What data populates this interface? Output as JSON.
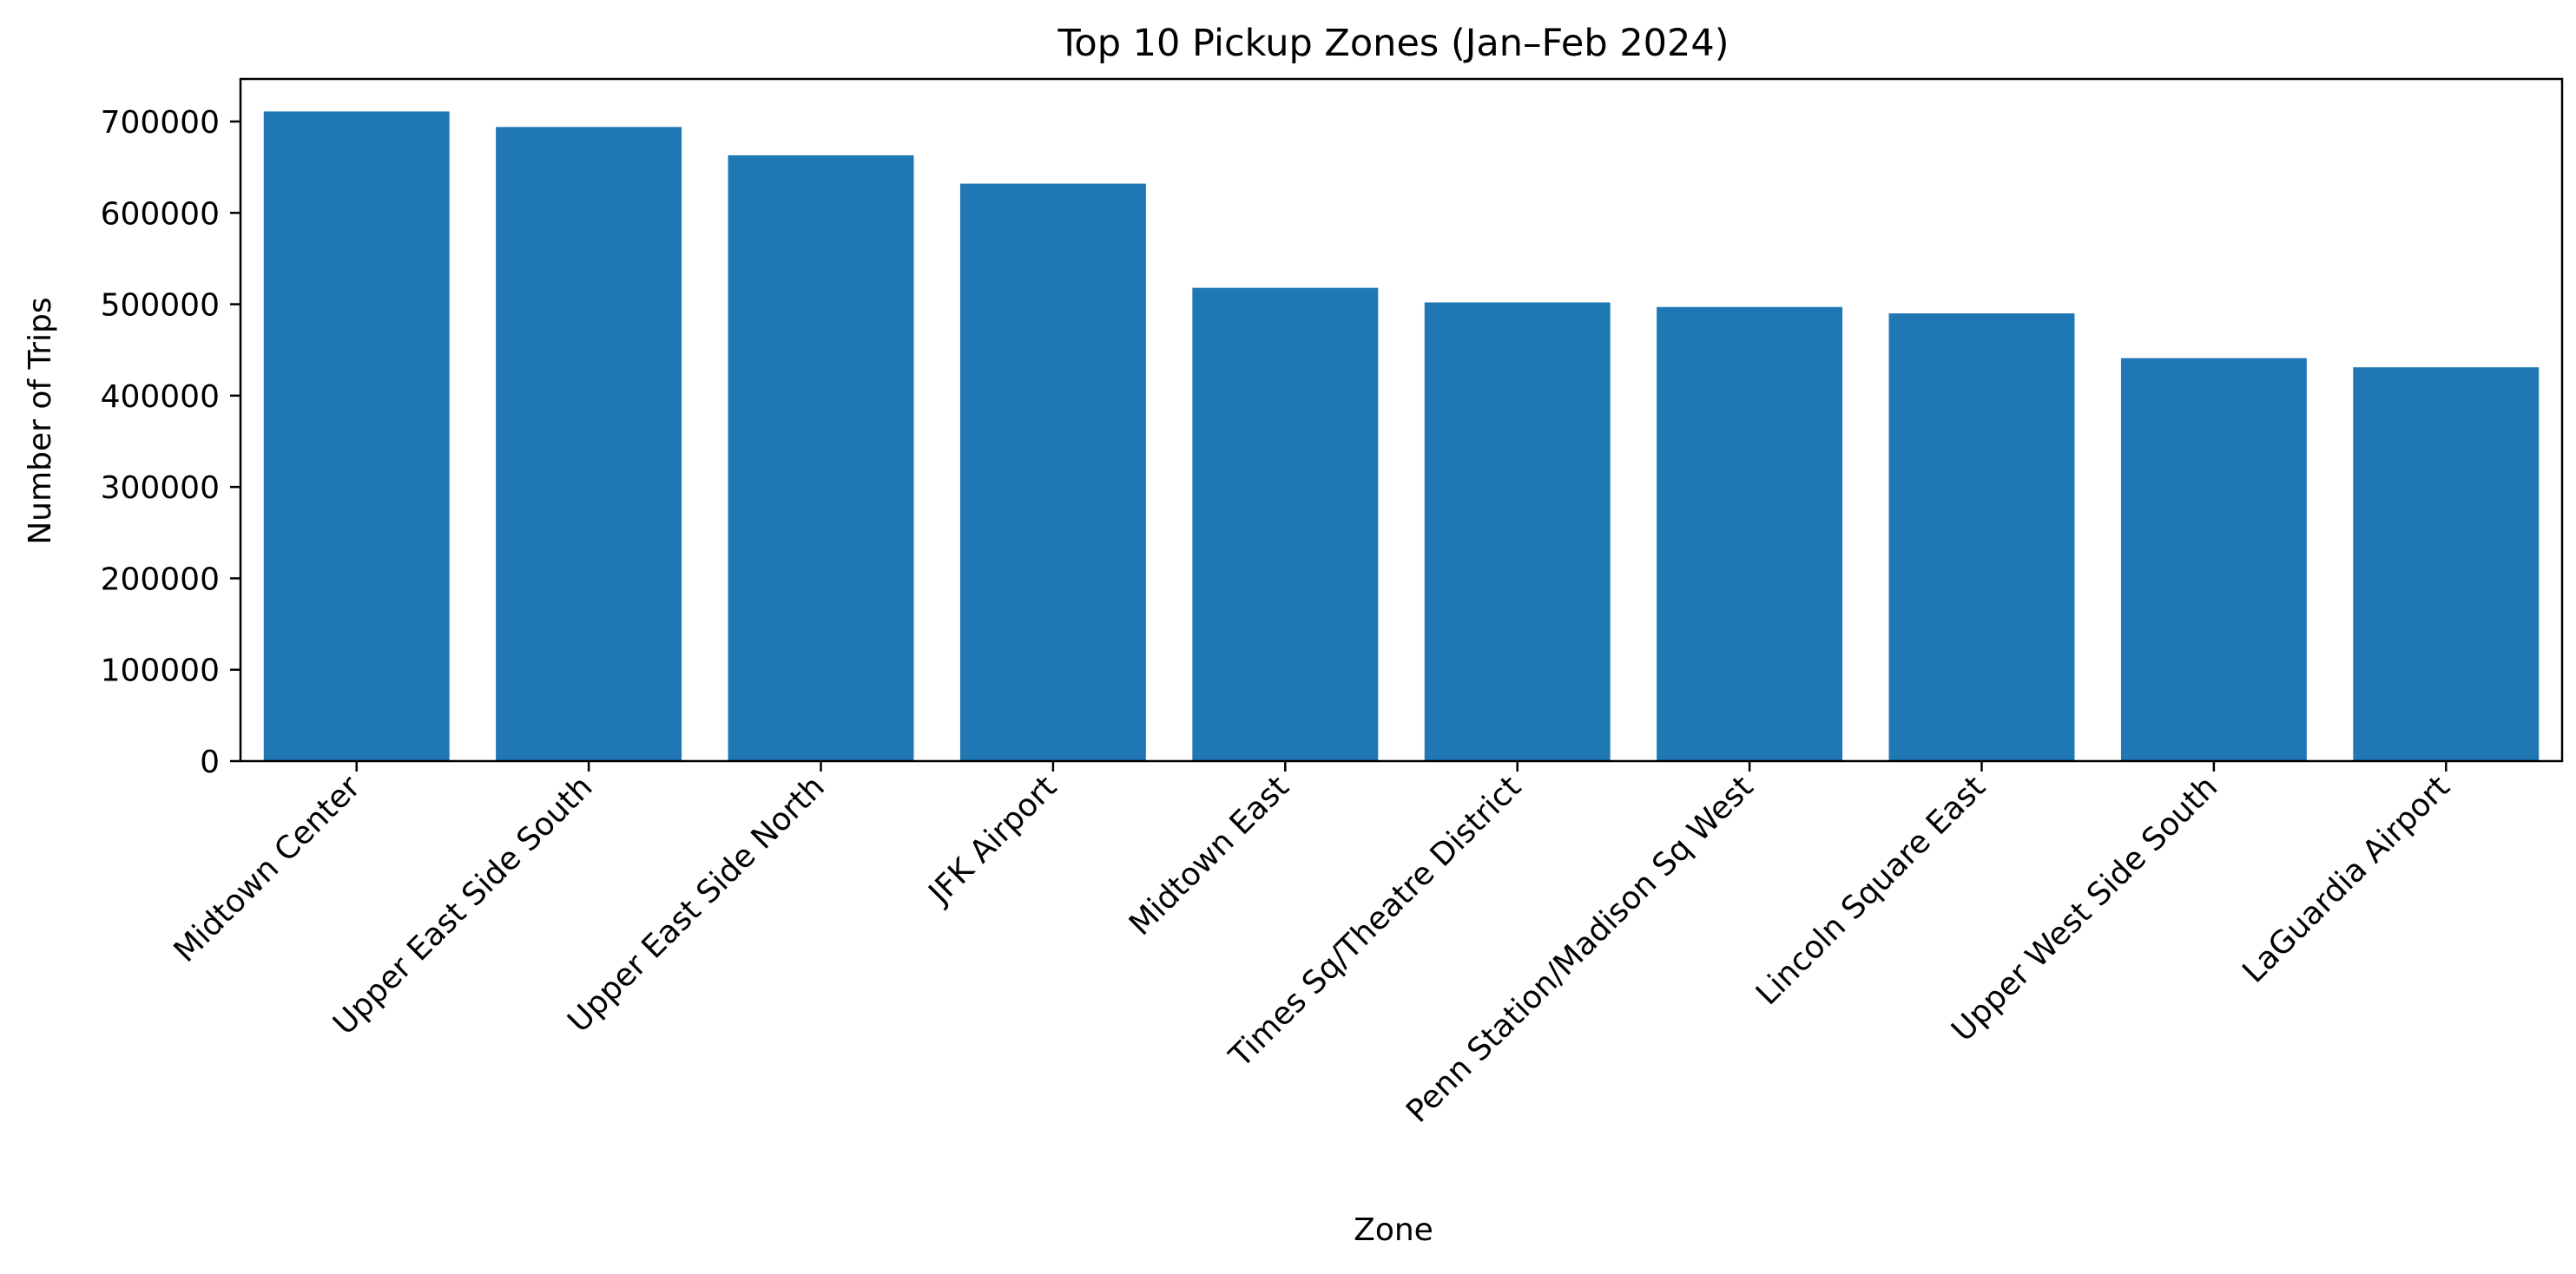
{
  "chart_data": {
    "type": "bar",
    "title": "Top 10 Pickup Zones (Jan–Feb 2024)",
    "xlabel": "Zone",
    "ylabel": "Number of Trips",
    "categories": [
      "Midtown Center",
      "Upper East Side South",
      "Upper East Side North",
      "JFK Airport",
      "Midtown East",
      "Times Sq/Theatre District",
      "Penn Station/Madison Sq West",
      "Lincoln Square East",
      "Upper West Side South",
      "LaGuardia Airport"
    ],
    "values": [
      711000,
      694000,
      663000,
      632000,
      518000,
      502000,
      497000,
      490000,
      441000,
      431000
    ],
    "ylim": [
      0,
      746550
    ],
    "yticks": [
      0,
      100000,
      200000,
      300000,
      400000,
      500000,
      600000,
      700000
    ],
    "ytick_labels": [
      "0",
      "100000",
      "200000",
      "300000",
      "400000",
      "500000",
      "600000",
      "700000"
    ],
    "bar_color": "#1f77b4",
    "grid": false,
    "legend": "none"
  }
}
